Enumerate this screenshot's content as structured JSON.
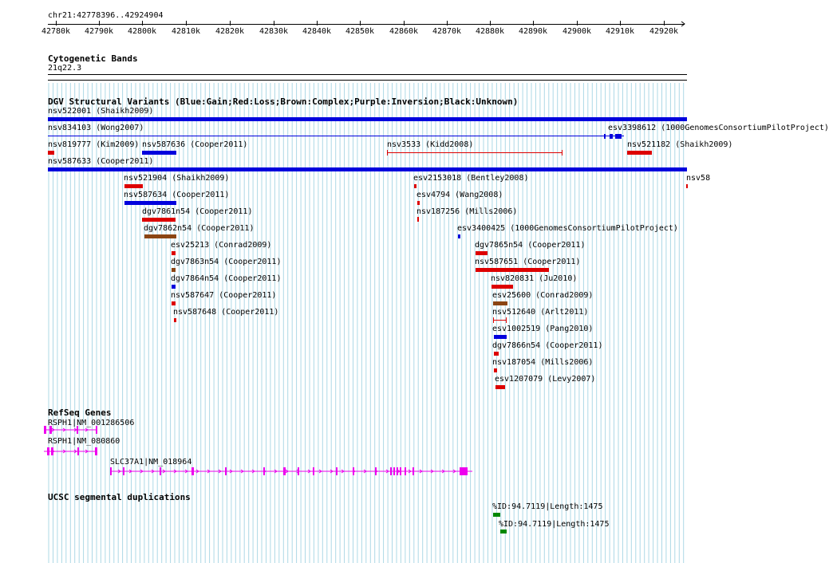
{
  "ruler": {
    "region": "chr21:42778396..42924904",
    "ticks": [
      "42780k",
      "42790k",
      "42800k",
      "42810k",
      "42820k",
      "42830k",
      "42840k",
      "42850k",
      "42860k",
      "42870k",
      "42880k",
      "42890k",
      "42900k",
      "42910k",
      "42920k"
    ]
  },
  "cytoband": {
    "title": "Cytogenetic Bands",
    "band": "21q22.3"
  },
  "dgv": {
    "title": "DGV Structural Variants (Blue:Gain;Red:Loss;Brown:Complex;Purple:Inversion;Black:Unknown)",
    "features": [
      {
        "label": "nsv522001 (Shaikh2009)",
        "color": "#0000dd",
        "type": "bar"
      },
      {
        "label": "nsv834103 (Wong2007)",
        "color": "#0000dd",
        "type": "line"
      },
      {
        "label": "esv3398612 (1000GenomesConsortiumPilotProject)",
        "color": "#0000dd",
        "type": "blocks"
      },
      {
        "label": "nsv819777 (Kim2009)",
        "color": "#dd0000",
        "type": "bar"
      },
      {
        "label": "nsv587636 (Cooper2011)",
        "color": "#0000dd",
        "type": "bar"
      },
      {
        "label": "nsv3533 (Kidd2008)",
        "color": "#dd0000",
        "type": "span"
      },
      {
        "label": "nsv521182 (Shaikh2009)",
        "color": "#dd0000",
        "type": "bar"
      },
      {
        "label": "nsv587633 (Cooper2011)",
        "color": "#0000dd",
        "type": "bar"
      },
      {
        "label": "nsv521904 (Shaikh2009)",
        "color": "#dd0000",
        "type": "bar"
      },
      {
        "label": "esv2153018 (Bentley2008)",
        "color": "#dd0000",
        "type": "bar"
      },
      {
        "label": "nsv58",
        "color": "#dd0000",
        "type": "bar"
      },
      {
        "label": "nsv587634 (Cooper2011)",
        "color": "#0000dd",
        "type": "bar"
      },
      {
        "label": "esv4794 (Wang2008)",
        "color": "#dd0000",
        "type": "bar"
      },
      {
        "label": "dgv7861n54 (Cooper2011)",
        "color": "#dd0000",
        "type": "bar"
      },
      {
        "label": "nsv187256 (Mills2006)",
        "color": "#dd0000",
        "type": "bar"
      },
      {
        "label": "dgv7862n54 (Cooper2011)",
        "color": "#8b4513",
        "type": "bar"
      },
      {
        "label": "esv3400425 (1000GenomesConsortiumPilotProject)",
        "color": "#0000dd",
        "type": "bar"
      },
      {
        "label": "esv25213 (Conrad2009)",
        "color": "#dd0000",
        "type": "bar"
      },
      {
        "label": "dgv7865n54 (Cooper2011)",
        "color": "#dd0000",
        "type": "bar"
      },
      {
        "label": "dgv7863n54 (Cooper2011)",
        "color": "#8b4513",
        "type": "bar"
      },
      {
        "label": "nsv587651 (Cooper2011)",
        "color": "#dd0000",
        "type": "bar"
      },
      {
        "label": "dgv7864n54 (Cooper2011)",
        "color": "#0000dd",
        "type": "bar"
      },
      {
        "label": "nsv820831 (Ju2010)",
        "color": "#dd0000",
        "type": "bar"
      },
      {
        "label": "nsv587647 (Cooper2011)",
        "color": "#dd0000",
        "type": "bar"
      },
      {
        "label": "esv25600 (Conrad2009)",
        "color": "#8b4513",
        "type": "bar"
      },
      {
        "label": "nsv587648 (Cooper2011)",
        "color": "#dd0000",
        "type": "bar"
      },
      {
        "label": "nsv512640 (Arlt2011)",
        "color": "#dd0000",
        "type": "span"
      },
      {
        "label": "esv1002519 (Pang2010)",
        "color": "#0000dd",
        "type": "bar"
      },
      {
        "label": "dgv7866n54 (Cooper2011)",
        "color": "#dd0000",
        "type": "bar"
      },
      {
        "label": "nsv187054 (Mills2006)",
        "color": "#dd0000",
        "type": "bar"
      },
      {
        "label": "esv1207079 (Levy2007)",
        "color": "#dd0000",
        "type": "bar"
      }
    ]
  },
  "refseq": {
    "title": "RefSeq Genes",
    "color": "#ee00ee",
    "genes": [
      {
        "label": "RSPH1|NM_001286506"
      },
      {
        "label": "RSPH1|NM_080860"
      },
      {
        "label": "SLC37A1|NM_018964"
      }
    ]
  },
  "segdups": {
    "title": "UCSC segmental duplications",
    "color": "#008800",
    "items": [
      {
        "label": "%ID:94.7119|Length:1475"
      },
      {
        "label": "%ID:94.7119|Length:1475"
      }
    ]
  },
  "colors": {
    "grid": "#add8e6",
    "gain": "#0000dd",
    "loss": "#dd0000",
    "complex": "#8b4513",
    "gene": "#ee00ee",
    "segdup": "#008800"
  }
}
